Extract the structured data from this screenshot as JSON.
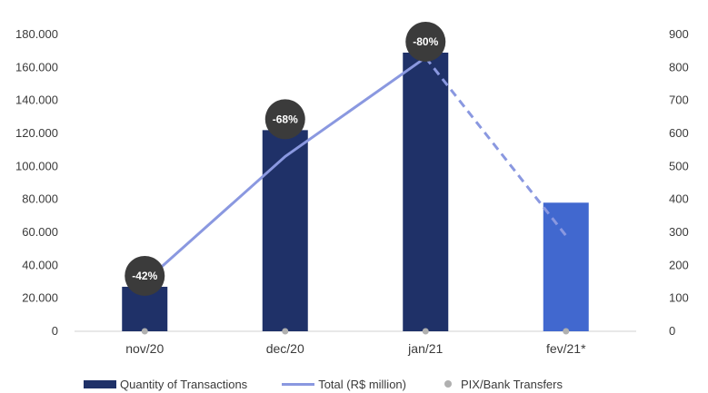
{
  "chart_data": {
    "type": "bar",
    "categories": [
      "nov/20",
      "dec/20",
      "jan/21",
      "fev/21*"
    ],
    "series": [
      {
        "name": "Quantity of Transactions",
        "kind": "bar",
        "axis": "left",
        "values": [
          27000,
          122000,
          169000,
          78000
        ]
      },
      {
        "name": "Total (R$ million)",
        "kind": "line",
        "axis": "right",
        "values": [
          150,
          530,
          830,
          290
        ],
        "dashed_from_index": 2
      },
      {
        "name": "PIX/Bank Transfers",
        "kind": "scatter",
        "axis": "left",
        "values": [
          0,
          0,
          0,
          0
        ]
      }
    ],
    "badges": [
      "-42%",
      "-68%",
      "-80%",
      ""
    ],
    "left_axis": {
      "min": 0,
      "max": 180000,
      "step": 20000,
      "tick_labels": [
        "0",
        "20.000",
        "40.000",
        "60.000",
        "80.000",
        "100.000",
        "120.000",
        "140.000",
        "160.000",
        "180.000"
      ]
    },
    "right_axis": {
      "min": 0,
      "max": 900,
      "step": 100,
      "tick_labels": [
        "0",
        "100",
        "200",
        "300",
        "400",
        "500",
        "600",
        "700",
        "800",
        "900"
      ]
    },
    "grid": false,
    "legend_position": "bottom",
    "colors": {
      "bar": "#1f3168",
      "bar_highlight": "#4168cf",
      "line": "#8a98e0",
      "dot": "#b0b0b0",
      "badge": "#3b3b3b",
      "axis": "#d0d0d0"
    }
  }
}
